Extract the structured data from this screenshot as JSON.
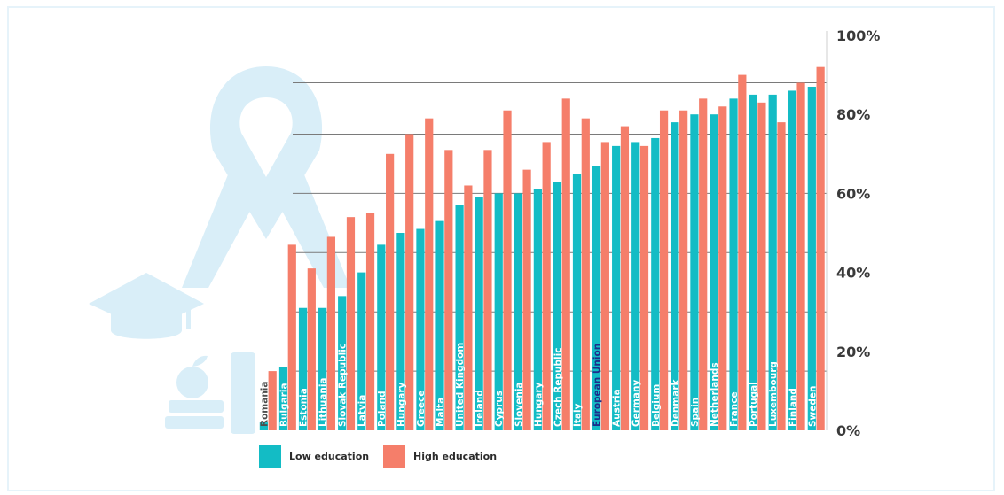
{
  "colors": {
    "low": "#13bcc5",
    "high": "#f57e6a",
    "grid": "#7a7a7a",
    "axis_text": "#3a3a3a",
    "watermark": "#d9eef8",
    "highlight_label": "#1c2f8c"
  },
  "decorations": [
    "ribbon-icon",
    "graduation-cap-icon",
    "apple-icon",
    "books-icon",
    "bottle-icon"
  ],
  "chart_data": {
    "type": "bar",
    "title": "",
    "xlabel": "",
    "ylabel": "",
    "ylim": [
      0,
      100
    ],
    "grid": true,
    "legend_position": "bottom-left",
    "y_ticks": [
      "0%",
      "20%",
      "40%",
      "60%",
      "80%",
      "100%"
    ],
    "categories": [
      "Romania",
      "Bulgaria",
      "Estonia",
      "Lithuania",
      "Slovak Republic",
      "Latvia",
      "Poland",
      "Hungary",
      "Greece",
      "Malta",
      "United Kingdom",
      "Ireland",
      "Cyprus",
      "Slovenia",
      "Hungary",
      "Czech Republic",
      "Italy",
      "European Union",
      "Austria",
      "Germany",
      "Belgium",
      "Denmark",
      "Spain",
      "Netherlands",
      "France",
      "Portugal",
      "Luxembourg",
      "Finland",
      "Sweden"
    ],
    "highlight_category": "European Union",
    "series": [
      {
        "name": "Low education",
        "values": [
          2,
          16,
          31,
          31,
          34,
          40,
          47,
          50,
          51,
          53,
          57,
          59,
          60,
          60,
          61,
          63,
          65,
          67,
          72,
          73,
          74,
          78,
          80,
          80,
          84,
          85,
          85,
          86,
          87
        ]
      },
      {
        "name": "High education",
        "values": [
          15,
          47,
          41,
          49,
          54,
          55,
          70,
          75,
          79,
          71,
          62,
          71,
          81,
          66,
          73,
          84,
          79,
          73,
          77,
          72,
          81,
          81,
          84,
          82,
          90,
          83,
          78,
          88,
          92
        ]
      }
    ]
  }
}
